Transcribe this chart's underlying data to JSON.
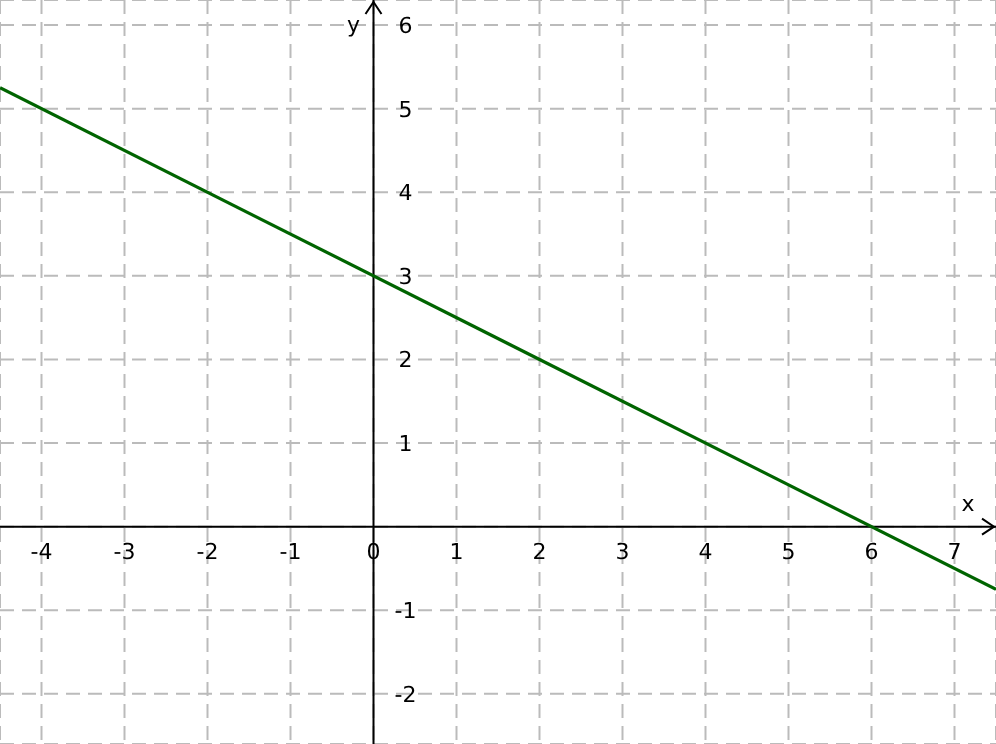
{
  "chart_data": {
    "type": "line",
    "xlabel": "x",
    "ylabel": "y",
    "x": [
      -4.5,
      7.5
    ],
    "series": [
      {
        "color": "#006400",
        "values": [
          5.25,
          -0.75
        ]
      }
    ],
    "xlim": [
      -4.5,
      7.5
    ],
    "ylim": [
      -2.6,
      6.3
    ],
    "xticks": [
      -4,
      -3,
      -2,
      -1,
      0,
      1,
      2,
      3,
      4,
      5,
      6,
      7
    ],
    "yticks": [
      -2,
      -1,
      {
        "value": 0,
        "label": null
      },
      1,
      2,
      3,
      4,
      5,
      6
    ],
    "grid": true,
    "marker": "none",
    "line_style": "solid"
  }
}
